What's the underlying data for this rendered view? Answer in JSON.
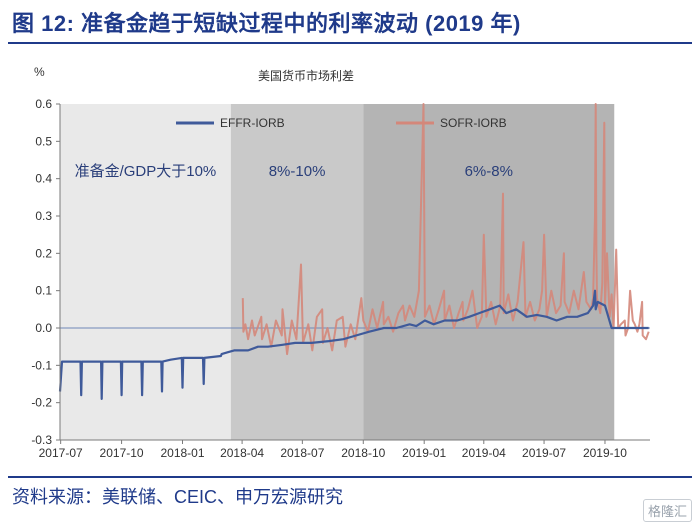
{
  "figure": {
    "title": "图 12: 准备金趋于短缺过程中的利率波动 (2019 年)",
    "source": "资料来源：美联储、CEIC、申万宏源研究",
    "watermark": "格隆汇"
  },
  "colors": {
    "title": "#1f3a8a",
    "effr": "#3f5a9a",
    "sofr": "#d4877a",
    "band1": "#e9e9e9",
    "band2": "#c9c9c9",
    "band3": "#b4b4b4"
  },
  "chart_data": {
    "type": "line",
    "title": "美国货币市场利差",
    "ylabel": "%",
    "ylim": [
      -0.3,
      0.6
    ],
    "yticks": [
      "-0.3",
      "-0.2",
      "-0.1",
      "0.0",
      "0.1",
      "0.2",
      "0.3",
      "0.4",
      "0.5",
      "0.6"
    ],
    "xlim": [
      "2017-06-30",
      "2019-12-08"
    ],
    "xticks": [
      "2017-07",
      "2017-10",
      "2018-01",
      "2018-04",
      "2018-07",
      "2018-10",
      "2019-01",
      "2019-04",
      "2019-07",
      "2019-10"
    ],
    "legend": {
      "position": "top"
    },
    "regions": [
      {
        "label": "准备金/GDP大于10%",
        "start": "2017-06-30",
        "end": "2018-03-15"
      },
      {
        "label": "8%-10%",
        "start": "2018-03-15",
        "end": "2018-10-01"
      },
      {
        "label": "6%-8%",
        "start": "2018-10-01",
        "end": "2019-10-15"
      }
    ],
    "series": [
      {
        "name": "EFFR-IORB",
        "points": [
          [
            "2017-06-30",
            -0.17
          ],
          [
            "2017-07-03",
            -0.09
          ],
          [
            "2017-07-31",
            -0.09
          ],
          [
            "2017-08-01",
            -0.18
          ],
          [
            "2017-08-02",
            -0.09
          ],
          [
            "2017-08-31",
            -0.09
          ],
          [
            "2017-09-01",
            -0.19
          ],
          [
            "2017-09-02",
            -0.09
          ],
          [
            "2017-09-30",
            -0.09
          ],
          [
            "2017-10-01",
            -0.18
          ],
          [
            "2017-10-02",
            -0.09
          ],
          [
            "2017-10-31",
            -0.09
          ],
          [
            "2017-11-01",
            -0.18
          ],
          [
            "2017-11-02",
            -0.09
          ],
          [
            "2017-11-30",
            -0.09
          ],
          [
            "2017-12-01",
            -0.17
          ],
          [
            "2017-12-02",
            -0.09
          ],
          [
            "2017-12-14",
            -0.085
          ],
          [
            "2017-12-31",
            -0.08
          ],
          [
            "2018-01-01",
            -0.16
          ],
          [
            "2018-01-02",
            -0.08
          ],
          [
            "2018-02-01",
            -0.08
          ],
          [
            "2018-02-02",
            -0.15
          ],
          [
            "2018-02-03",
            -0.08
          ],
          [
            "2018-02-28",
            -0.075
          ],
          [
            "2018-03-01",
            -0.07
          ],
          [
            "2018-03-10",
            -0.065
          ],
          [
            "2018-03-20",
            -0.06
          ],
          [
            "2018-04-10",
            -0.06
          ],
          [
            "2018-04-25",
            -0.05
          ],
          [
            "2018-05-10",
            -0.05
          ],
          [
            "2018-06-01",
            -0.045
          ],
          [
            "2018-06-20",
            -0.04
          ],
          [
            "2018-07-15",
            -0.04
          ],
          [
            "2018-08-10",
            -0.035
          ],
          [
            "2018-09-01",
            -0.03
          ],
          [
            "2018-09-20",
            -0.02
          ],
          [
            "2018-10-10",
            -0.01
          ],
          [
            "2018-11-01",
            0.0
          ],
          [
            "2018-11-20",
            0.0
          ],
          [
            "2018-12-10",
            0.01
          ],
          [
            "2018-12-20",
            0.005
          ],
          [
            "2019-01-02",
            0.02
          ],
          [
            "2019-01-15",
            0.01
          ],
          [
            "2019-02-01",
            0.02
          ],
          [
            "2019-02-20",
            0.02
          ],
          [
            "2019-03-10",
            0.03
          ],
          [
            "2019-03-25",
            0.04
          ],
          [
            "2019-04-10",
            0.05
          ],
          [
            "2019-04-25",
            0.06
          ],
          [
            "2019-05-05",
            0.04
          ],
          [
            "2019-05-20",
            0.05
          ],
          [
            "2019-06-05",
            0.03
          ],
          [
            "2019-06-20",
            0.035
          ],
          [
            "2019-07-05",
            0.03
          ],
          [
            "2019-07-20",
            0.02
          ],
          [
            "2019-08-05",
            0.03
          ],
          [
            "2019-08-20",
            0.03
          ],
          [
            "2019-09-05",
            0.04
          ],
          [
            "2019-09-13",
            0.06
          ],
          [
            "2019-09-16",
            0.1
          ],
          [
            "2019-09-17",
            0.05
          ],
          [
            "2019-09-20",
            0.07
          ],
          [
            "2019-10-01",
            0.06
          ],
          [
            "2019-10-11",
            0.0
          ],
          [
            "2019-10-20",
            0.0
          ],
          [
            "2019-11-05",
            0.0
          ],
          [
            "2019-11-20",
            0.0
          ],
          [
            "2019-12-06",
            0.0
          ]
        ]
      },
      {
        "name": "SOFR-IORB",
        "points": [
          [
            "2018-04-02",
            0.08
          ],
          [
            "2018-04-03",
            -0.01
          ],
          [
            "2018-04-06",
            0.01
          ],
          [
            "2018-04-10",
            -0.03
          ],
          [
            "2018-04-16",
            0.02
          ],
          [
            "2018-04-20",
            -0.02
          ],
          [
            "2018-04-30",
            0.03
          ],
          [
            "2018-05-01",
            -0.03
          ],
          [
            "2018-05-08",
            0.01
          ],
          [
            "2018-05-15",
            -0.05
          ],
          [
            "2018-05-22",
            0.02
          ],
          [
            "2018-05-31",
            -0.02
          ],
          [
            "2018-06-01",
            0.05
          ],
          [
            "2018-06-08",
            -0.07
          ],
          [
            "2018-06-15",
            0.02
          ],
          [
            "2018-06-22",
            -0.03
          ],
          [
            "2018-06-29",
            0.17
          ],
          [
            "2018-07-02",
            -0.04
          ],
          [
            "2018-07-10",
            0.01
          ],
          [
            "2018-07-16",
            -0.06
          ],
          [
            "2018-07-23",
            0.03
          ],
          [
            "2018-07-31",
            0.05
          ],
          [
            "2018-08-01",
            -0.04
          ],
          [
            "2018-08-08",
            0.0
          ],
          [
            "2018-08-15",
            -0.06
          ],
          [
            "2018-08-22",
            0.02
          ],
          [
            "2018-08-31",
            0.03
          ],
          [
            "2018-09-04",
            -0.05
          ],
          [
            "2018-09-12",
            0.01
          ],
          [
            "2018-09-19",
            -0.03
          ],
          [
            "2018-09-28",
            0.08
          ],
          [
            "2018-10-01",
            0.02
          ],
          [
            "2018-10-08",
            -0.01
          ],
          [
            "2018-10-15",
            0.05
          ],
          [
            "2018-10-22",
            0.0
          ],
          [
            "2018-10-31",
            0.07
          ],
          [
            "2018-11-01",
            0.01
          ],
          [
            "2018-11-08",
            0.03
          ],
          [
            "2018-11-15",
            -0.01
          ],
          [
            "2018-11-23",
            0.04
          ],
          [
            "2018-11-30",
            0.06
          ],
          [
            "2018-12-03",
            0.02
          ],
          [
            "2018-12-10",
            0.06
          ],
          [
            "2018-12-17",
            0.03
          ],
          [
            "2018-12-24",
            0.1
          ],
          [
            "2018-12-31",
            0.6
          ],
          [
            "2019-01-02",
            0.03
          ],
          [
            "2019-01-09",
            0.06
          ],
          [
            "2019-01-16",
            0.01
          ],
          [
            "2019-01-23",
            0.05
          ],
          [
            "2019-01-31",
            0.1
          ],
          [
            "2019-02-01",
            0.02
          ],
          [
            "2019-02-08",
            0.06
          ],
          [
            "2019-02-15",
            0.0
          ],
          [
            "2019-02-22",
            0.04
          ],
          [
            "2019-02-28",
            0.07
          ],
          [
            "2019-03-01",
            0.02
          ],
          [
            "2019-03-08",
            0.05
          ],
          [
            "2019-03-15",
            0.1
          ],
          [
            "2019-03-22",
            0.0
          ],
          [
            "2019-03-29",
            0.03
          ],
          [
            "2019-04-01",
            0.25
          ],
          [
            "2019-04-05",
            0.03
          ],
          [
            "2019-04-12",
            0.07
          ],
          [
            "2019-04-19",
            0.01
          ],
          [
            "2019-04-26",
            0.06
          ],
          [
            "2019-04-30",
            0.36
          ],
          [
            "2019-05-01",
            0.04
          ],
          [
            "2019-05-08",
            0.09
          ],
          [
            "2019-05-15",
            0.02
          ],
          [
            "2019-05-22",
            0.07
          ],
          [
            "2019-05-31",
            0.23
          ],
          [
            "2019-06-03",
            0.03
          ],
          [
            "2019-06-10",
            0.07
          ],
          [
            "2019-06-17",
            0.02
          ],
          [
            "2019-06-24",
            0.05
          ],
          [
            "2019-06-28",
            0.1
          ],
          [
            "2019-07-01",
            0.25
          ],
          [
            "2019-07-05",
            0.03
          ],
          [
            "2019-07-12",
            0.1
          ],
          [
            "2019-07-19",
            0.04
          ],
          [
            "2019-07-26",
            0.06
          ],
          [
            "2019-07-31",
            0.2
          ],
          [
            "2019-08-01",
            0.07
          ],
          [
            "2019-08-08",
            0.04
          ],
          [
            "2019-08-15",
            0.1
          ],
          [
            "2019-08-22",
            0.05
          ],
          [
            "2019-08-30",
            0.15
          ],
          [
            "2019-09-03",
            0.07
          ],
          [
            "2019-09-10",
            0.05
          ],
          [
            "2019-09-13",
            0.08
          ],
          [
            "2019-09-16",
            0.3
          ],
          [
            "2019-09-17",
            0.6
          ],
          [
            "2019-09-18",
            0.2
          ],
          [
            "2019-09-19",
            0.08
          ],
          [
            "2019-09-24",
            0.04
          ],
          [
            "2019-09-27",
            0.12
          ],
          [
            "2019-09-30",
            0.55
          ],
          [
            "2019-10-01",
            0.06
          ],
          [
            "2019-10-04",
            0.2
          ],
          [
            "2019-10-08",
            0.03
          ],
          [
            "2019-10-11",
            0.09
          ],
          [
            "2019-10-14",
            0.0
          ],
          [
            "2019-10-18",
            0.21
          ],
          [
            "2019-10-21",
            0.0
          ],
          [
            "2019-10-25",
            0.01
          ],
          [
            "2019-10-31",
            0.02
          ],
          [
            "2019-11-01",
            -0.02
          ],
          [
            "2019-11-05",
            0.0
          ],
          [
            "2019-11-08",
            0.1
          ],
          [
            "2019-11-12",
            0.02
          ],
          [
            "2019-11-15",
            0.01
          ],
          [
            "2019-11-19",
            -0.01
          ],
          [
            "2019-11-22",
            0.01
          ],
          [
            "2019-11-26",
            0.07
          ],
          [
            "2019-11-27",
            -0.02
          ],
          [
            "2019-12-02",
            -0.03
          ],
          [
            "2019-12-06",
            -0.01
          ]
        ]
      }
    ]
  }
}
